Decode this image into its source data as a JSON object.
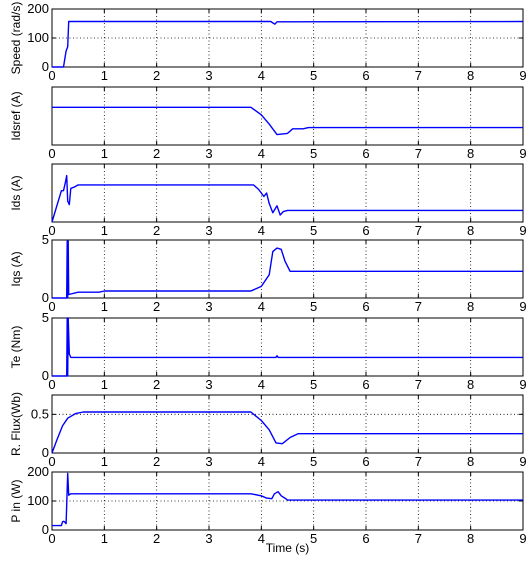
{
  "figure": {
    "x_title": "Time (s)"
  },
  "colors": {
    "line": "#0000FF",
    "axes": "#000000",
    "grid": "#000000",
    "background": "#FFFFFF"
  },
  "chart_data": [
    {
      "type": "line",
      "ylabel": "Speed (rad/s)",
      "xlim": [
        0,
        9
      ],
      "ylim": [
        0,
        200
      ],
      "xticks": [
        0,
        1,
        2,
        3,
        4,
        5,
        6,
        7,
        8,
        9
      ],
      "yticks": [
        0,
        100,
        200
      ],
      "grid": true,
      "series": [
        {
          "x": [
            0,
            0.22,
            0.27,
            0.3,
            0.32,
            4.18,
            4.22,
            4.26,
            4.3,
            9
          ],
          "y": [
            0,
            0,
            55,
            70,
            157,
            157,
            152,
            148,
            156,
            157
          ]
        }
      ]
    },
    {
      "type": "line",
      "ylabel": "Idsref (A)",
      "xlim": [
        0,
        9
      ],
      "ylim": [
        0,
        5
      ],
      "xticks": [
        0,
        1,
        2,
        3,
        4,
        5,
        6,
        7,
        8,
        9
      ],
      "yticks": [],
      "grid": true,
      "series": [
        {
          "x": [
            0,
            3.8,
            4.0,
            4.15,
            4.3,
            4.5,
            4.6,
            4.8,
            4.9,
            9
          ],
          "y": [
            3.25,
            3.25,
            2.6,
            1.8,
            0.9,
            1.0,
            1.4,
            1.4,
            1.5,
            1.5
          ]
        }
      ]
    },
    {
      "type": "line",
      "ylabel": "Ids (A)",
      "xlim": [
        0,
        9
      ],
      "ylim": [
        0,
        5
      ],
      "xticks": [
        0,
        1,
        2,
        3,
        4,
        5,
        6,
        7,
        8,
        9
      ],
      "yticks": [],
      "grid": true,
      "series": [
        {
          "x": [
            0,
            0.18,
            0.22,
            0.26,
            0.28,
            0.3,
            0.33,
            0.36,
            0.42,
            0.5,
            3.85,
            3.95,
            4.05,
            4.1,
            4.15,
            4.22,
            4.3,
            4.36,
            4.42,
            4.5,
            4.6,
            9
          ],
          "y": [
            0,
            2.7,
            2.7,
            3.5,
            4.0,
            1.8,
            1.5,
            2.9,
            3.0,
            3.2,
            3.2,
            2.8,
            2.2,
            2.5,
            1.6,
            0.8,
            1.4,
            0.6,
            0.9,
            1.0,
            1.0,
            1.0
          ]
        }
      ]
    },
    {
      "type": "line",
      "ylabel": "Iqs (A)",
      "xlim": [
        0,
        9
      ],
      "ylim": [
        0,
        5
      ],
      "xticks": [
        0,
        1,
        2,
        3,
        4,
        5,
        6,
        7,
        8,
        9
      ],
      "yticks": [
        0,
        5
      ],
      "grid": true,
      "series": [
        {
          "x": [
            0,
            0.28,
            0.29,
            0.3,
            0.31,
            0.32,
            0.5,
            0.9,
            1.0,
            3.8,
            4.0,
            4.15,
            4.22,
            4.3,
            4.38,
            4.45,
            4.55,
            4.7,
            9
          ],
          "y": [
            0,
            0,
            4.9,
            0,
            4.9,
            0.3,
            0.5,
            0.5,
            0.6,
            0.6,
            1.0,
            2.0,
            4.0,
            4.3,
            4.2,
            3.2,
            2.3,
            2.3,
            2.3
          ]
        }
      ]
    },
    {
      "type": "line",
      "ylabel": "Te (Nm)",
      "xlim": [
        0,
        9
      ],
      "ylim": [
        0,
        5
      ],
      "xticks": [
        0,
        1,
        2,
        3,
        4,
        5,
        6,
        7,
        8,
        9
      ],
      "yticks": [
        0,
        5
      ],
      "grid": true,
      "series": [
        {
          "x": [
            0,
            0.28,
            0.29,
            0.3,
            0.31,
            0.33,
            0.36,
            4.28,
            4.3,
            4.32,
            9
          ],
          "y": [
            0,
            0,
            5.0,
            0,
            5.0,
            1.9,
            1.6,
            1.6,
            1.75,
            1.6,
            1.6
          ]
        }
      ]
    },
    {
      "type": "line",
      "ylabel": "R. Flux(Wb)",
      "xlim": [
        0,
        9
      ],
      "ylim": [
        0,
        0.75
      ],
      "xticks": [
        0,
        1,
        2,
        3,
        4,
        5,
        6,
        7,
        8,
        9
      ],
      "yticks": [
        0,
        0.5
      ],
      "grid": true,
      "series": [
        {
          "x": [
            0,
            0.1,
            0.2,
            0.3,
            0.45,
            0.6,
            3.8,
            4.0,
            4.15,
            4.28,
            4.4,
            4.55,
            4.7,
            9
          ],
          "y": [
            0,
            0.18,
            0.35,
            0.45,
            0.51,
            0.53,
            0.53,
            0.42,
            0.3,
            0.13,
            0.12,
            0.2,
            0.25,
            0.25
          ]
        }
      ]
    },
    {
      "type": "line",
      "ylabel": "P in (W)",
      "xlim": [
        0,
        9
      ],
      "ylim": [
        0,
        200
      ],
      "xticks": [
        0,
        1,
        2,
        3,
        4,
        5,
        6,
        7,
        8,
        9
      ],
      "yticks": [
        0,
        100,
        200
      ],
      "grid": true,
      "series": [
        {
          "x": [
            0,
            0.18,
            0.2,
            0.22,
            0.24,
            0.27,
            0.3,
            0.32,
            0.36,
            0.5,
            3.8,
            4.0,
            4.1,
            4.2,
            4.25,
            4.32,
            4.38,
            4.45,
            4.5,
            9
          ],
          "y": [
            15,
            15,
            28,
            30,
            28,
            22,
            195,
            120,
            125,
            125,
            125,
            118,
            110,
            108,
            125,
            132,
            118,
            110,
            103,
            103
          ]
        }
      ]
    }
  ]
}
